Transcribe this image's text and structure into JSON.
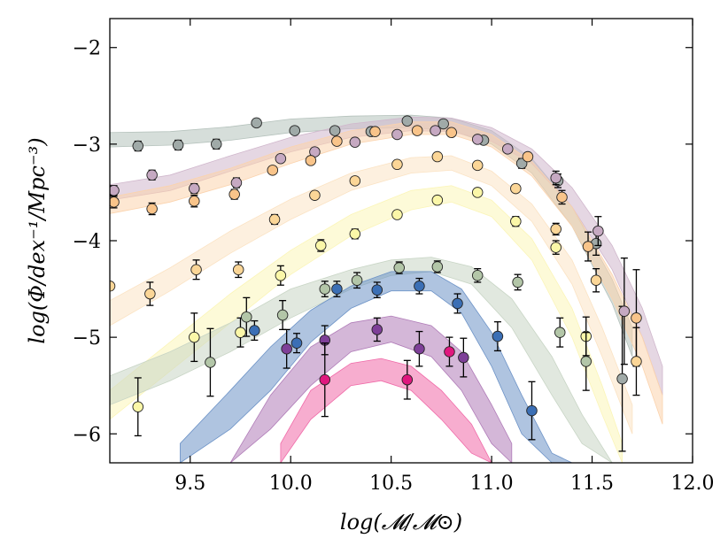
{
  "chart_data": {
    "type": "scatter",
    "title": "",
    "xlabel": "log(𝓜/𝓜⊙)",
    "ylabel": "log(Φ/dex⁻¹/Mpc⁻³)",
    "xlim": [
      9.1,
      12.0
    ],
    "ylim": [
      -6.3,
      -1.7
    ],
    "xticks": [
      9.5,
      10.0,
      10.5,
      11.0,
      11.5,
      12.0
    ],
    "xtick_labels": [
      "9.5",
      "10.0",
      "10.5",
      "11.0",
      "11.5",
      "12.0"
    ],
    "yticks": [
      -2,
      -3,
      -4,
      -5,
      -6
    ],
    "ytick_labels": [
      "−2",
      "−3",
      "−4",
      "−5",
      "−6"
    ],
    "grid": false,
    "series": [
      {
        "color": "#a0aaa8",
        "band_color": "#b5c2bc",
        "band": {
          "x": [
            9.1,
            9.4,
            9.7,
            10.0,
            10.3,
            10.6,
            10.8,
            11.0,
            11.2,
            11.4,
            11.6,
            11.7
          ],
          "lower": [
            -3.03,
            -3.01,
            -2.96,
            -2.88,
            -2.84,
            -2.83,
            -2.86,
            -3.0,
            -3.3,
            -3.85,
            -4.65,
            -5.2
          ],
          "upper": [
            -2.88,
            -2.87,
            -2.82,
            -2.74,
            -2.71,
            -2.7,
            -2.73,
            -2.86,
            -3.15,
            -3.65,
            -4.4,
            -4.9
          ]
        },
        "points": [
          {
            "x": 9.24,
            "y": -3.02,
            "err": 0.05
          },
          {
            "x": 9.44,
            "y": -3.01,
            "err": 0.05
          },
          {
            "x": 9.63,
            "y": -3.0,
            "err": 0.05
          },
          {
            "x": 9.83,
            "y": -2.78,
            "err": 0.0
          },
          {
            "x": 10.02,
            "y": -2.86,
            "err": 0.0
          },
          {
            "x": 10.22,
            "y": -2.86,
            "err": 0.0
          },
          {
            "x": 10.4,
            "y": -2.87,
            "err": 0.0
          },
          {
            "x": 10.58,
            "y": -2.76,
            "err": 0.0
          },
          {
            "x": 10.76,
            "y": -2.79,
            "err": 0.0
          },
          {
            "x": 10.96,
            "y": -2.96,
            "err": 0.0
          },
          {
            "x": 11.15,
            "y": -3.2,
            "err": 0.05
          },
          {
            "x": 11.33,
            "y": -3.38,
            "err": 0.07
          },
          {
            "x": 11.52,
            "y": -4.03,
            "err": 0.12
          },
          {
            "x": 11.65,
            "y": -5.43,
            "err": 0.75
          }
        ]
      },
      {
        "color": "#c6a9c2",
        "band_color": "#d0b7cc",
        "band": {
          "x": [
            9.1,
            9.4,
            9.7,
            10.0,
            10.3,
            10.6,
            10.8,
            11.0,
            11.2,
            11.4,
            11.6,
            11.75,
            11.85
          ],
          "lower": [
            -3.58,
            -3.48,
            -3.28,
            -3.08,
            -2.93,
            -2.86,
            -2.87,
            -2.97,
            -3.2,
            -3.65,
            -4.3,
            -5.0,
            -5.6
          ],
          "upper": [
            -3.42,
            -3.32,
            -3.12,
            -2.93,
            -2.79,
            -2.72,
            -2.73,
            -2.83,
            -3.05,
            -3.45,
            -4.05,
            -4.7,
            -5.3
          ]
        },
        "points": [
          {
            "x": 9.12,
            "y": -3.48,
            "err": 0.05
          },
          {
            "x": 9.31,
            "y": -3.32,
            "err": 0.05
          },
          {
            "x": 9.52,
            "y": -3.46,
            "err": 0.05
          },
          {
            "x": 9.73,
            "y": -3.4,
            "err": 0.05
          },
          {
            "x": 9.95,
            "y": -3.15,
            "err": 0.0
          },
          {
            "x": 10.12,
            "y": -3.08,
            "err": 0.0
          },
          {
            "x": 10.32,
            "y": -2.98,
            "err": 0.0
          },
          {
            "x": 10.53,
            "y": -2.9,
            "err": 0.0
          },
          {
            "x": 10.72,
            "y": -2.86,
            "err": 0.0
          },
          {
            "x": 10.93,
            "y": -2.95,
            "err": 0.0
          },
          {
            "x": 11.08,
            "y": -3.05,
            "err": 0.0
          },
          {
            "x": 11.32,
            "y": -3.35,
            "err": 0.07
          },
          {
            "x": 11.53,
            "y": -3.9,
            "err": 0.15
          },
          {
            "x": 11.66,
            "y": -4.73,
            "err": 0.55
          }
        ]
      },
      {
        "color": "#f9c48a",
        "band_color": "#fbd3ad",
        "band": {
          "x": [
            9.1,
            9.4,
            9.7,
            10.0,
            10.3,
            10.6,
            10.8,
            11.0,
            11.2,
            11.4,
            11.6,
            11.75,
            11.85
          ],
          "lower": [
            -3.72,
            -3.6,
            -3.42,
            -3.2,
            -3.0,
            -2.9,
            -2.9,
            -3.03,
            -3.33,
            -3.85,
            -4.6,
            -5.3,
            -5.9
          ],
          "upper": [
            -3.55,
            -3.43,
            -3.25,
            -3.03,
            -2.86,
            -2.77,
            -2.77,
            -2.9,
            -3.18,
            -3.65,
            -4.35,
            -5.0,
            -5.6
          ]
        },
        "points": [
          {
            "x": 9.12,
            "y": -3.6,
            "err": 0.06
          },
          {
            "x": 9.31,
            "y": -3.67,
            "err": 0.06
          },
          {
            "x": 9.52,
            "y": -3.59,
            "err": 0.06
          },
          {
            "x": 9.72,
            "y": -3.52,
            "err": 0.05
          },
          {
            "x": 9.91,
            "y": -3.27,
            "err": 0.0
          },
          {
            "x": 10.1,
            "y": -3.17,
            "err": 0.0
          },
          {
            "x": 10.23,
            "y": -2.97,
            "err": 0.0
          },
          {
            "x": 10.42,
            "y": -2.87,
            "err": 0.0
          },
          {
            "x": 10.63,
            "y": -2.86,
            "err": 0.0
          },
          {
            "x": 10.8,
            "y": -2.88,
            "err": 0.0
          },
          {
            "x": 11.18,
            "y": -3.13,
            "err": 0.0
          },
          {
            "x": 11.35,
            "y": -3.55,
            "err": 0.07
          },
          {
            "x": 11.48,
            "y": -4.06,
            "err": 0.15
          },
          {
            "x": 11.72,
            "y": -4.8,
            "err": 0.5
          }
        ]
      },
      {
        "color": "#fbd697",
        "band_color": "#fbe3c4",
        "band": {
          "x": [
            9.1,
            9.4,
            9.7,
            10.0,
            10.3,
            10.6,
            10.8,
            11.0,
            11.2,
            11.4,
            11.55,
            11.7
          ],
          "lower": [
            -4.88,
            -4.52,
            -4.13,
            -3.78,
            -3.48,
            -3.3,
            -3.27,
            -3.43,
            -3.8,
            -4.45,
            -5.2,
            -6.0
          ],
          "upper": [
            -4.62,
            -4.28,
            -3.9,
            -3.57,
            -3.3,
            -3.14,
            -3.12,
            -3.28,
            -3.62,
            -4.2,
            -4.9,
            -5.7
          ]
        },
        "points": [
          {
            "x": 9.1,
            "y": -4.47,
            "err": 0.0
          },
          {
            "x": 9.3,
            "y": -4.55,
            "err": 0.12
          },
          {
            "x": 9.53,
            "y": -4.3,
            "err": 0.1
          },
          {
            "x": 9.74,
            "y": -4.3,
            "err": 0.08
          },
          {
            "x": 9.92,
            "y": -3.78,
            "err": 0.05
          },
          {
            "x": 10.12,
            "y": -3.53,
            "err": 0.0
          },
          {
            "x": 10.32,
            "y": -3.38,
            "err": 0.0
          },
          {
            "x": 10.53,
            "y": -3.21,
            "err": 0.0
          },
          {
            "x": 10.73,
            "y": -3.13,
            "err": 0.0
          },
          {
            "x": 10.93,
            "y": -3.22,
            "err": 0.0
          },
          {
            "x": 11.12,
            "y": -3.46,
            "err": 0.0
          },
          {
            "x": 11.32,
            "y": -3.88,
            "err": 0.06
          },
          {
            "x": 11.52,
            "y": -4.41,
            "err": 0.12
          },
          {
            "x": 11.72,
            "y": -5.25,
            "err": 0.35
          }
        ]
      },
      {
        "color": "#fbf7a8",
        "band_color": "#fbf5b8",
        "band": {
          "x": [
            9.1,
            9.4,
            9.7,
            10.0,
            10.3,
            10.6,
            10.8,
            11.0,
            11.2,
            11.4,
            11.55,
            11.65
          ],
          "lower": [
            -5.85,
            -5.35,
            -4.85,
            -4.35,
            -3.95,
            -3.68,
            -3.6,
            -3.75,
            -4.2,
            -5.0,
            -5.8,
            -6.3
          ],
          "upper": [
            -5.55,
            -5.05,
            -4.55,
            -4.1,
            -3.73,
            -3.48,
            -3.43,
            -3.58,
            -3.98,
            -4.7,
            -5.5,
            -6.1
          ]
        },
        "points": [
          {
            "x": 9.24,
            "y": -5.72,
            "err": 0.3
          },
          {
            "x": 9.52,
            "y": -5.0,
            "err": 0.25
          },
          {
            "x": 9.75,
            "y": -4.95,
            "err": 0.15
          },
          {
            "x": 9.95,
            "y": -4.36,
            "err": 0.1
          },
          {
            "x": 10.15,
            "y": -4.05,
            "err": 0.06
          },
          {
            "x": 10.32,
            "y": -3.93,
            "err": 0.05
          },
          {
            "x": 10.53,
            "y": -3.73,
            "err": 0.0
          },
          {
            "x": 10.73,
            "y": -3.58,
            "err": 0.0
          },
          {
            "x": 10.93,
            "y": -3.5,
            "err": 0.0
          },
          {
            "x": 11.12,
            "y": -3.8,
            "err": 0.05
          },
          {
            "x": 11.32,
            "y": -4.07,
            "err": 0.07
          },
          {
            "x": 11.47,
            "y": -4.99,
            "err": 0.2
          }
        ]
      },
      {
        "color": "#b3c6a8",
        "band_color": "#c8d5c5",
        "band": {
          "x": [
            9.1,
            9.4,
            9.7,
            10.0,
            10.3,
            10.5,
            10.7,
            10.9,
            11.1,
            11.3,
            11.45,
            11.6
          ],
          "lower": [
            -5.7,
            -5.45,
            -5.15,
            -4.8,
            -4.5,
            -4.36,
            -4.32,
            -4.45,
            -4.9,
            -5.6,
            -6.1,
            -6.3
          ],
          "upper": [
            -5.4,
            -5.15,
            -4.85,
            -4.5,
            -4.3,
            -4.2,
            -4.17,
            -4.27,
            -4.6,
            -5.2,
            -5.8,
            -6.3
          ]
        },
        "points": [
          {
            "x": 9.6,
            "y": -5.26,
            "err": 0.35
          },
          {
            "x": 9.78,
            "y": -4.79,
            "err": 0.2
          },
          {
            "x": 9.96,
            "y": -4.77,
            "err": 0.15
          },
          {
            "x": 10.17,
            "y": -4.5,
            "err": 0.08
          },
          {
            "x": 10.33,
            "y": -4.41,
            "err": 0.08
          },
          {
            "x": 10.54,
            "y": -4.28,
            "err": 0.06
          },
          {
            "x": 10.73,
            "y": -4.27,
            "err": 0.06
          },
          {
            "x": 10.93,
            "y": -4.36,
            "err": 0.07
          },
          {
            "x": 11.13,
            "y": -4.43,
            "err": 0.08
          },
          {
            "x": 11.34,
            "y": -4.95,
            "err": 0.15
          },
          {
            "x": 11.47,
            "y": -5.25,
            "err": 0.3
          }
        ]
      },
      {
        "color": "#3b6fb5",
        "band_color": "#6d93c7",
        "band": {
          "x": [
            9.45,
            9.7,
            9.9,
            10.1,
            10.3,
            10.5,
            10.7,
            10.85,
            11.0,
            11.15,
            11.3,
            11.4
          ],
          "lower": [
            -6.3,
            -5.95,
            -5.55,
            -5.05,
            -4.7,
            -4.52,
            -4.52,
            -4.75,
            -5.3,
            -6.0,
            -6.3,
            -6.3
          ],
          "upper": [
            -6.1,
            -5.55,
            -5.1,
            -4.72,
            -4.47,
            -4.32,
            -4.32,
            -4.5,
            -4.95,
            -5.6,
            -6.2,
            -6.3
          ]
        },
        "points": [
          {
            "x": 9.82,
            "y": -4.93,
            "err": 0.1
          },
          {
            "x": 10.03,
            "y": -5.06,
            "err": 0.1
          },
          {
            "x": 10.23,
            "y": -4.5,
            "err": 0.08
          },
          {
            "x": 10.43,
            "y": -4.51,
            "err": 0.08
          },
          {
            "x": 10.64,
            "y": -4.47,
            "err": 0.08
          },
          {
            "x": 10.83,
            "y": -4.65,
            "err": 0.1
          },
          {
            "x": 11.03,
            "y": -4.99,
            "err": 0.15
          },
          {
            "x": 11.2,
            "y": -5.76,
            "err": 0.3
          }
        ]
      },
      {
        "color": "#7e3f98",
        "band_color": "#b07cb8",
        "band": {
          "x": [
            9.7,
            9.9,
            10.1,
            10.3,
            10.5,
            10.7,
            10.85,
            11.0,
            11.1
          ],
          "lower": [
            -6.3,
            -5.95,
            -5.5,
            -5.15,
            -5.05,
            -5.2,
            -5.55,
            -6.1,
            -6.3
          ],
          "upper": [
            -6.3,
            -5.6,
            -5.1,
            -4.85,
            -4.78,
            -4.88,
            -5.15,
            -5.7,
            -6.1
          ]
        },
        "points": [
          {
            "x": 9.98,
            "y": -5.12,
            "err": 0.2
          },
          {
            "x": 10.17,
            "y": -5.03,
            "err": 0.15
          },
          {
            "x": 10.43,
            "y": -4.92,
            "err": 0.12
          },
          {
            "x": 10.64,
            "y": -5.12,
            "err": 0.18
          },
          {
            "x": 10.86,
            "y": -5.21,
            "err": 0.2
          }
        ]
      },
      {
        "color": "#e0177e",
        "band_color": "#f06aa8",
        "band": {
          "x": [
            9.95,
            10.1,
            10.3,
            10.45,
            10.6,
            10.75,
            10.9,
            11.0
          ],
          "lower": [
            -6.3,
            -5.85,
            -5.5,
            -5.45,
            -5.55,
            -5.85,
            -6.2,
            -6.3
          ],
          "upper": [
            -6.1,
            -5.55,
            -5.27,
            -5.22,
            -5.3,
            -5.55,
            -5.9,
            -6.3
          ]
        },
        "points": [
          {
            "x": 10.17,
            "y": -5.44,
            "err": 0.38
          },
          {
            "x": 10.58,
            "y": -5.44,
            "err": 0.2
          },
          {
            "x": 10.79,
            "y": -5.15,
            "err": 0.15
          }
        ]
      }
    ]
  }
}
